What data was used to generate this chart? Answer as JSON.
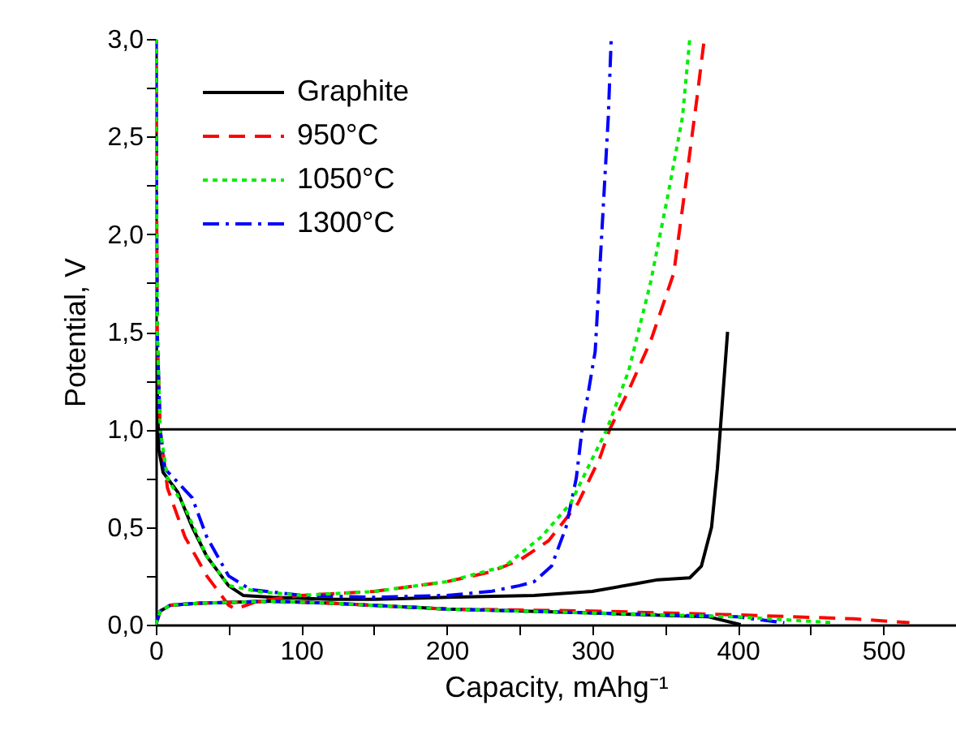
{
  "chart_data": {
    "type": "line",
    "xlabel": "Capacity, mAhg⁻¹",
    "ylabel": "Potential, V",
    "xlim": [
      0,
      550
    ],
    "xticks": [
      0,
      {
        "value": 50,
        "label": null
      },
      100,
      {
        "value": 150,
        "label": null
      },
      200,
      {
        "value": 250,
        "label": null
      },
      300,
      {
        "value": 350,
        "label": null
      },
      400,
      {
        "value": 450,
        "label": null
      },
      500
    ],
    "ylim": [
      0,
      3
    ],
    "yticks": [
      {
        "value": 0,
        "label": "0,0"
      },
      {
        "value": 0.25,
        "label": null
      },
      {
        "value": 0.5,
        "label": "0,5"
      },
      {
        "value": 0.75,
        "label": null
      },
      {
        "value": 1,
        "label": "1,0"
      },
      {
        "value": 1.25,
        "label": null
      },
      {
        "value": 1.5,
        "label": "1,5"
      },
      {
        "value": 1.75,
        "label": null
      },
      {
        "value": 2,
        "label": "2,0"
      },
      {
        "value": 2.25,
        "label": null
      },
      {
        "value": 2.5,
        "label": "2,5"
      },
      {
        "value": 2.75,
        "label": null
      },
      {
        "value": 3,
        "label": "3,0"
      }
    ],
    "grid": false,
    "legend": "top left",
    "marker": "none",
    "ref_lines": [
      {
        "axis": "y",
        "value": 1.0,
        "color": "#000000",
        "line_style": "solid"
      }
    ],
    "series": [
      {
        "name": "Graphite",
        "color": "#000000",
        "line_style": "solid",
        "x": [
          0,
          2,
          5,
          15,
          25,
          35,
          50,
          60,
          80,
          120,
          150,
          200,
          260,
          300,
          330,
          345,
          367,
          375,
          382,
          386,
          388,
          390,
          393
        ],
        "values": [
          1.5,
          0.9,
          0.78,
          0.68,
          0.5,
          0.35,
          0.2,
          0.15,
          0.14,
          0.13,
          0.13,
          0.14,
          0.15,
          0.17,
          0.21,
          0.23,
          0.24,
          0.3,
          0.5,
          0.8,
          1.0,
          1.2,
          1.5
        ]
      },
      {
        "name": "950°C",
        "color": "#ff0000",
        "line_style": "dashed",
        "x": [
          0,
          1,
          3,
          8,
          20,
          35,
          50,
          55,
          70,
          100,
          150,
          200,
          230,
          250,
          270,
          290,
          305,
          312,
          325,
          340,
          356,
          365,
          372,
          377
        ],
        "values": [
          3.0,
          1.5,
          1.0,
          0.7,
          0.45,
          0.25,
          0.1,
          0.08,
          0.12,
          0.15,
          0.17,
          0.22,
          0.27,
          0.33,
          0.43,
          0.62,
          0.85,
          1.0,
          1.2,
          1.45,
          1.8,
          2.3,
          2.7,
          3.0
        ]
      },
      {
        "name": "1050°C",
        "color": "#00ee00",
        "line_style": "dotted",
        "x": [
          0,
          1,
          3,
          8,
          20,
          35,
          50,
          70,
          100,
          150,
          200,
          240,
          265,
          285,
          300,
          310,
          325,
          340,
          352,
          362,
          367
        ],
        "values": [
          3.0,
          1.5,
          1.0,
          0.75,
          0.6,
          0.35,
          0.2,
          0.17,
          0.15,
          0.17,
          0.22,
          0.3,
          0.45,
          0.62,
          0.85,
          1.0,
          1.3,
          1.75,
          2.2,
          2.6,
          3.0
        ]
      },
      {
        "name": "1300°C",
        "color": "#0000ff",
        "line_style": "dashdot",
        "x": [
          0,
          1,
          3,
          6,
          15,
          25,
          35,
          50,
          65,
          100,
          150,
          200,
          230,
          250,
          260,
          272,
          282,
          289,
          293,
          302,
          305,
          308,
          311,
          313
        ],
        "values": [
          3.0,
          1.5,
          1.0,
          0.8,
          0.73,
          0.65,
          0.45,
          0.25,
          0.18,
          0.15,
          0.14,
          0.15,
          0.17,
          0.2,
          0.22,
          0.3,
          0.5,
          0.75,
          1.0,
          1.4,
          1.8,
          2.2,
          2.6,
          3.0
        ]
      },
      {
        "color": "#000000",
        "line_style": "solid",
        "x": [
          0,
          3,
          10,
          30,
          80,
          120,
          200,
          300,
          380,
          402
        ],
        "values": [
          0.0,
          0.07,
          0.1,
          0.11,
          0.12,
          0.11,
          0.08,
          0.06,
          0.04,
          0.0
        ]
      },
      {
        "color": "#ff0000",
        "line_style": "dashed",
        "x": [
          0,
          3,
          10,
          30,
          80,
          120,
          200,
          300,
          400,
          480,
          518
        ],
        "values": [
          0.0,
          0.07,
          0.1,
          0.11,
          0.12,
          0.11,
          0.08,
          0.07,
          0.05,
          0.03,
          0.01
        ]
      },
      {
        "color": "#00ee00",
        "line_style": "dotted",
        "x": [
          0,
          3,
          10,
          30,
          80,
          120,
          200,
          300,
          400,
          466
        ],
        "values": [
          0.0,
          0.07,
          0.1,
          0.11,
          0.12,
          0.11,
          0.08,
          0.06,
          0.04,
          0.01
        ]
      },
      {
        "color": "#0000ff",
        "line_style": "dashdot",
        "x": [
          0,
          3,
          10,
          30,
          80,
          120,
          200,
          300,
          400,
          432
        ],
        "values": [
          0.0,
          0.07,
          0.1,
          0.11,
          0.12,
          0.11,
          0.08,
          0.06,
          0.04,
          0.01
        ]
      }
    ]
  }
}
